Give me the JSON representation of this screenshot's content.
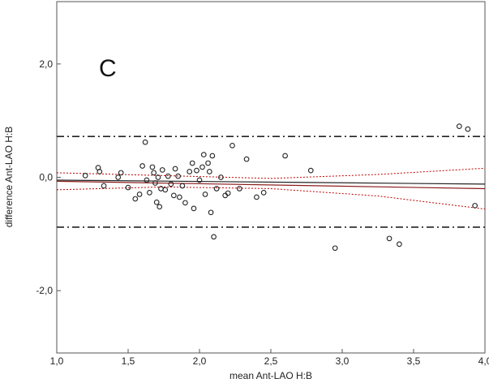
{
  "chart_data": {
    "type": "scatter",
    "panel_label": "C",
    "xlabel": "mean Ant-LAO H:B",
    "ylabel": "difference Ant-LAO H:B",
    "xlim": [
      1.0,
      4.0
    ],
    "ylim": [
      -3.1,
      3.1
    ],
    "x_ticks": [
      1.0,
      1.5,
      2.0,
      2.5,
      3.0,
      3.5,
      4.0
    ],
    "x_tick_labels": [
      "1,0",
      "1,5",
      "2,0",
      "2,5",
      "3,0",
      "3,5",
      "4,0"
    ],
    "y_ticks": [
      -2.0,
      0.0,
      2.0
    ],
    "y_tick_labels": [
      "-2,0",
      "0,0",
      "2,0"
    ],
    "grid": false,
    "reference_lines": {
      "upper_limit": 0.72,
      "lower_limit": -0.88,
      "bias_line": {
        "x": [
          1.0,
          4.0
        ],
        "y": [
          -0.05,
          -0.12
        ]
      },
      "regression_line": {
        "x": [
          1.0,
          4.0
        ],
        "y": [
          -0.07,
          -0.2
        ]
      },
      "ci_upper": {
        "x": [
          1.0,
          1.75,
          2.5,
          3.25,
          4.0
        ],
        "y": [
          0.08,
          0.03,
          -0.02,
          0.05,
          0.16
        ]
      },
      "ci_lower": {
        "x": [
          1.0,
          1.75,
          2.5,
          3.25,
          4.0
        ],
        "y": [
          -0.22,
          -0.17,
          -0.2,
          -0.33,
          -0.56
        ]
      }
    },
    "colors": {
      "points": "#222222",
      "limits": "#222222",
      "bias": "#222222",
      "regression": "#8b1a1a",
      "ci": "#c00000"
    },
    "points": [
      {
        "x": 1.2,
        "y": 0.03
      },
      {
        "x": 1.29,
        "y": 0.17
      },
      {
        "x": 1.3,
        "y": 0.1
      },
      {
        "x": 1.33,
        "y": -0.15
      },
      {
        "x": 1.43,
        "y": 0.0
      },
      {
        "x": 1.45,
        "y": 0.08
      },
      {
        "x": 1.5,
        "y": -0.18
      },
      {
        "x": 1.55,
        "y": -0.38
      },
      {
        "x": 1.58,
        "y": -0.3
      },
      {
        "x": 1.6,
        "y": 0.2
      },
      {
        "x": 1.62,
        "y": 0.62
      },
      {
        "x": 1.63,
        "y": -0.05
      },
      {
        "x": 1.65,
        "y": -0.27
      },
      {
        "x": 1.67,
        "y": 0.18
      },
      {
        "x": 1.68,
        "y": 0.08
      },
      {
        "x": 1.69,
        "y": -0.1
      },
      {
        "x": 1.7,
        "y": -0.44
      },
      {
        "x": 1.71,
        "y": 0.0
      },
      {
        "x": 1.72,
        "y": -0.52
      },
      {
        "x": 1.73,
        "y": -0.2
      },
      {
        "x": 1.74,
        "y": 0.13
      },
      {
        "x": 1.76,
        "y": -0.22
      },
      {
        "x": 1.78,
        "y": 0.02
      },
      {
        "x": 1.8,
        "y": -0.12
      },
      {
        "x": 1.82,
        "y": -0.32
      },
      {
        "x": 1.83,
        "y": 0.15
      },
      {
        "x": 1.85,
        "y": 0.02
      },
      {
        "x": 1.86,
        "y": -0.35
      },
      {
        "x": 1.88,
        "y": -0.15
      },
      {
        "x": 1.9,
        "y": -0.45
      },
      {
        "x": 1.93,
        "y": 0.1
      },
      {
        "x": 1.95,
        "y": 0.25
      },
      {
        "x": 1.96,
        "y": -0.55
      },
      {
        "x": 1.98,
        "y": 0.12
      },
      {
        "x": 2.0,
        "y": -0.05
      },
      {
        "x": 2.02,
        "y": 0.18
      },
      {
        "x": 2.03,
        "y": 0.4
      },
      {
        "x": 2.04,
        "y": -0.3
      },
      {
        "x": 2.06,
        "y": 0.25
      },
      {
        "x": 2.07,
        "y": 0.1
      },
      {
        "x": 2.08,
        "y": -0.62
      },
      {
        "x": 2.09,
        "y": 0.38
      },
      {
        "x": 2.1,
        "y": -1.05
      },
      {
        "x": 2.12,
        "y": -0.2
      },
      {
        "x": 2.15,
        "y": 0.0
      },
      {
        "x": 2.18,
        "y": -0.32
      },
      {
        "x": 2.2,
        "y": -0.28
      },
      {
        "x": 2.23,
        "y": 0.56
      },
      {
        "x": 2.28,
        "y": -0.2
      },
      {
        "x": 2.33,
        "y": 0.32
      },
      {
        "x": 2.4,
        "y": -0.35
      },
      {
        "x": 2.45,
        "y": -0.27
      },
      {
        "x": 2.6,
        "y": 0.38
      },
      {
        "x": 2.78,
        "y": 0.12
      },
      {
        "x": 2.95,
        "y": -1.25
      },
      {
        "x": 3.33,
        "y": -1.08
      },
      {
        "x": 3.4,
        "y": -1.18
      },
      {
        "x": 3.82,
        "y": 0.9
      },
      {
        "x": 3.88,
        "y": 0.85
      },
      {
        "x": 3.93,
        "y": -0.5
      }
    ]
  }
}
